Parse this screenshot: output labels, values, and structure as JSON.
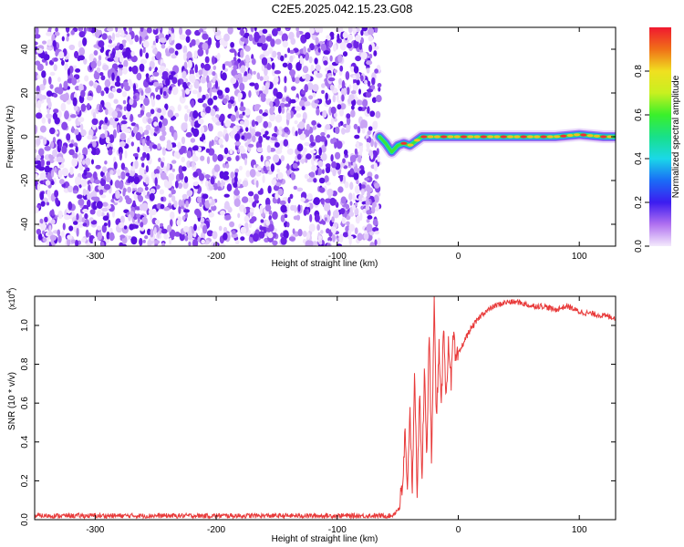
{
  "title": "C2E5.2025.042.15.23.G08",
  "colors": {
    "signal": "#e83a3a",
    "noise_dot": "#7a2be0",
    "background": "#ffffff"
  },
  "chart_data": [
    {
      "type": "heatmap",
      "title": "C2E5.2025.042.15.23.G08",
      "xlabel": "Height of straight line (km)",
      "ylabel": "Frequency (Hz)",
      "xlim": [
        -350,
        130
      ],
      "ylim": [
        -50,
        50
      ],
      "xticks": [
        -300,
        -200,
        -100,
        0,
        100
      ],
      "yticks": [
        40,
        20,
        0,
        -20,
        -40
      ],
      "noise_region_x": [
        -350,
        -65
      ],
      "signal_track": {
        "x": [
          -65,
          -60,
          -55,
          -50,
          -45,
          -40,
          -35,
          -30,
          -20,
          -10,
          0,
          20,
          40,
          60,
          80,
          100,
          120,
          130
        ],
        "y": [
          0,
          -3,
          -7,
          -4,
          -3,
          -4,
          -2,
          0,
          0,
          0,
          0,
          0,
          0,
          0,
          0,
          1,
          0,
          0
        ]
      },
      "colorbar": {
        "label": "Normalized spectral amplitude",
        "range": [
          0,
          1
        ],
        "ticks": [
          0.0,
          0.2,
          0.4,
          0.6,
          0.8
        ]
      }
    },
    {
      "type": "line",
      "xlabel": "Height of straight line (km)",
      "ylabel": "SNR (10 * v/v)",
      "scale_label": "(x10",
      "scale_exp": "4",
      "xlim": [
        -350,
        130
      ],
      "ylim": [
        0,
        1.15
      ],
      "xticks": [
        -300,
        -200,
        -100,
        0,
        100
      ],
      "yticks": [
        0.0,
        0.2,
        0.4,
        0.6,
        0.8,
        1.0
      ],
      "series": [
        {
          "x": [
            -350,
            -200,
            -100,
            -55,
            -50,
            -46,
            -44,
            -42,
            -40,
            -38,
            -36,
            -34,
            -32,
            -30,
            -28,
            -26,
            -24,
            -22,
            -20,
            -18,
            -16,
            -14,
            -12,
            -10,
            -8,
            -6,
            -4,
            -2,
            0,
            5,
            10,
            15,
            20,
            30,
            40,
            50,
            60,
            70,
            80,
            90,
            100,
            110,
            120,
            130
          ],
          "y": [
            0.02,
            0.02,
            0.02,
            0.02,
            0.05,
            0.15,
            0.45,
            0.1,
            0.6,
            0.15,
            0.8,
            0.05,
            0.7,
            0.2,
            0.75,
            0.35,
            0.95,
            0.3,
            1.15,
            0.5,
            0.9,
            0.55,
            1.05,
            0.6,
            0.95,
            0.7,
            0.95,
            0.8,
            0.85,
            0.92,
            0.98,
            1.02,
            1.06,
            1.1,
            1.12,
            1.12,
            1.1,
            1.1,
            1.08,
            1.1,
            1.07,
            1.06,
            1.05,
            1.04
          ]
        }
      ]
    }
  ]
}
